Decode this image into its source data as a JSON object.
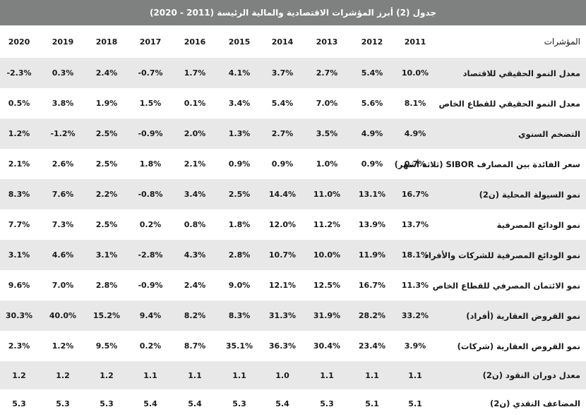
{
  "title": "جدول (2) أبرز المؤشرات الاقتصادية والمالية الرئيسة (2011 - 2020)",
  "header": {
    "label": "المؤشرات",
    "years": [
      "2011",
      "2012",
      "2013",
      "2014",
      "2015",
      "2016",
      "2017",
      "2018",
      "2019",
      "2020"
    ]
  },
  "rows": [
    {
      "label": "معدل النمو الحقيقي للاقتصاد",
      "values": [
        "10.0%",
        "5.4%",
        "2.7%",
        "3.7%",
        "4.1%",
        "1.7%",
        "-0.7%",
        "2.4%",
        "0.3%",
        "-2.3%"
      ]
    },
    {
      "label": "معدل النمو الحقيقي للقطاع الخاص",
      "values": [
        "8.1%",
        "5.6%",
        "7.0%",
        "5.4%",
        "3.4%",
        "0.1%",
        "1.5%",
        "1.9%",
        "3.8%",
        "0.5%"
      ]
    },
    {
      "label": "التضخم السنوي",
      "values": [
        "4.9%",
        "4.9%",
        "3.5%",
        "2.7%",
        "1.3%",
        "2.0%",
        "-0.9%",
        "2.5%",
        "-1.2%",
        "1.2%"
      ]
    },
    {
      "label": "سعر الفائدة بين المصارف SIBOR (ثلاثة أشهر)",
      "values": [
        "0.7%",
        "0.9%",
        "1.0%",
        "0.9%",
        "0.9%",
        "2.1%",
        "1.8%",
        "2.5%",
        "2.6%",
        "2.1%"
      ]
    },
    {
      "label": "نمو السيولة المحلية (ن2)",
      "values": [
        "16.7%",
        "13.1%",
        "11.0%",
        "14.4%",
        "2.5%",
        "3.4%",
        "-0.8%",
        "2.2%",
        "7.6%",
        "8.3%"
      ]
    },
    {
      "label": "نمو الودائع المصرفية",
      "values": [
        "13.7%",
        "13.9%",
        "11.2%",
        "12.0%",
        "1.8%",
        "0.8%",
        "0.2%",
        "2.5%",
        "7.3%",
        "7.7%"
      ]
    },
    {
      "label": "نمو الودائع المصرفية للشركات والأفراد",
      "values": [
        "18.1%",
        "11.9%",
        "10.0%",
        "10.7%",
        "2.8%",
        "4.3%",
        "-2.8%",
        "3.1%",
        "4.6%",
        "3.1%"
      ]
    },
    {
      "label": "نمو الائتمان المصرفي للقطاع الخاص",
      "values": [
        "11.3%",
        "16.7%",
        "12.5%",
        "12.1%",
        "9.0%",
        "2.4%",
        "-0.9%",
        "2.8%",
        "7.0%",
        "9.6%"
      ]
    },
    {
      "label": "نمو القروض العقارية (أفراد)",
      "values": [
        "33.2%",
        "28.2%",
        "31.9%",
        "31.3%",
        "8.3%",
        "8.2%",
        "9.4%",
        "15.2%",
        "40.0%",
        "30.3%"
      ]
    },
    {
      "label": "نمو القروض العقارية (شركات)",
      "values": [
        "3.9%",
        "23.4%",
        "30.4%",
        "36.3%",
        "35.1%",
        "8.7%",
        "0.2%",
        "9.5%",
        "1.2%",
        "2.3%"
      ]
    },
    {
      "label": "معدل دوران النقود (ن2)",
      "values": [
        "1.1",
        "1.1",
        "1.1",
        "1.0",
        "1.1",
        "1.1",
        "1.1",
        "1.2",
        "1.2",
        "1.2"
      ]
    },
    {
      "label": "المضاعف النقدي (ن2)",
      "values": [
        "5.1",
        "5.1",
        "5.3",
        "5.4",
        "5.3",
        "5.4",
        "5.4",
        "5.3",
        "5.3",
        "5.3"
      ]
    }
  ]
}
